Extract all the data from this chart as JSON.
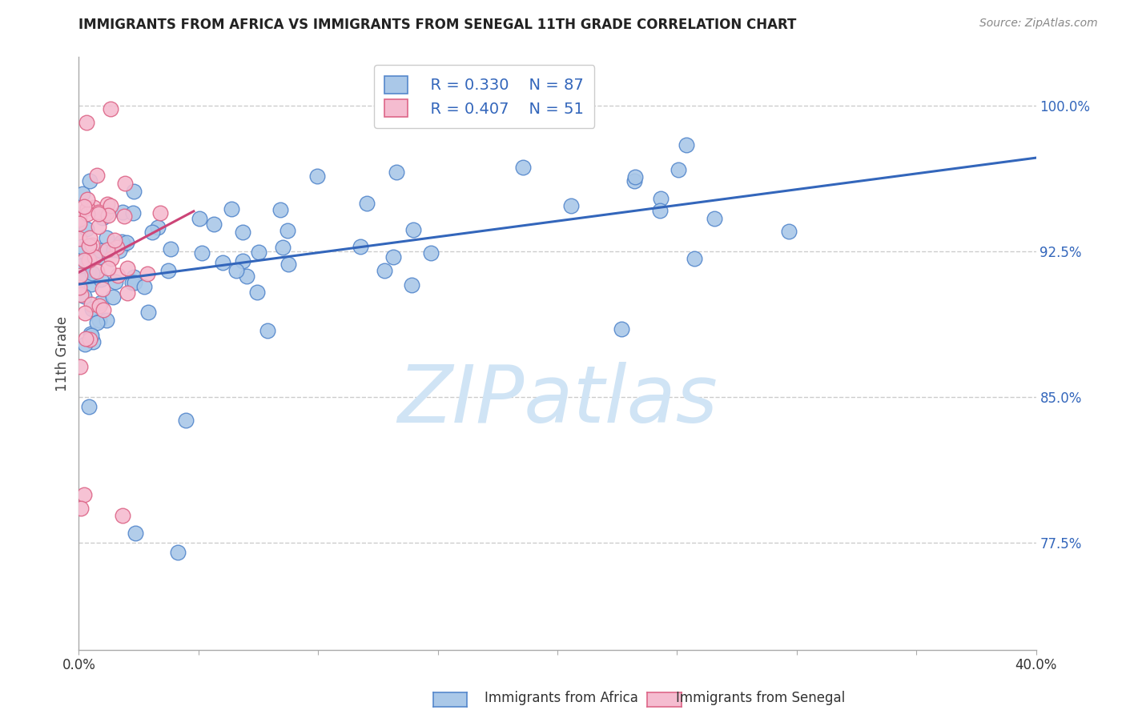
{
  "title": "IMMIGRANTS FROM AFRICA VS IMMIGRANTS FROM SENEGAL 11TH GRADE CORRELATION CHART",
  "source": "Source: ZipAtlas.com",
  "ylabel": "11th Grade",
  "yaxis_labels": [
    "100.0%",
    "92.5%",
    "85.0%",
    "77.5%"
  ],
  "yaxis_values": [
    1.0,
    0.925,
    0.85,
    0.775
  ],
  "xaxis_range": [
    0.0,
    0.4
  ],
  "yaxis_range": [
    0.72,
    1.025
  ],
  "legend_r_africa": "R = 0.330",
  "legend_n_africa": "N = 87",
  "legend_r_senegal": "R = 0.407",
  "legend_n_senegal": "N = 51",
  "africa_color": "#aac8e8",
  "africa_edge_color": "#5588cc",
  "africa_line_color": "#3366bb",
  "senegal_color": "#f5bcd0",
  "senegal_edge_color": "#dd6688",
  "senegal_line_color": "#cc4477",
  "watermark_color": "#d0e4f5",
  "background_color": "#ffffff",
  "grid_color": "#cccccc",
  "title_color": "#222222",
  "source_color": "#888888",
  "yaxis_tick_color": "#3366bb",
  "xlabel_color": "#333333",
  "legend_text_color": "#3366bb"
}
